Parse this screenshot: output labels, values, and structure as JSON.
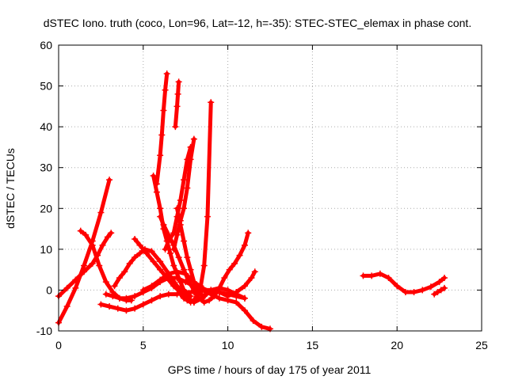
{
  "chart_data": {
    "type": "scatter",
    "title": "dSTEC Iono. truth (coco, Lon=96, Lat=-12, h=-35): STEC-STEC_elemax in phase cont.",
    "xlabel": "GPS time / hours of day 175 of year 2011",
    "ylabel": "dSTEC  / TECUs",
    "xlim": [
      0,
      25
    ],
    "ylim": [
      -10,
      60
    ],
    "x_ticks": [
      0,
      5,
      10,
      15,
      20,
      25
    ],
    "y_ticks": [
      -10,
      0,
      10,
      20,
      30,
      40,
      50,
      60
    ],
    "x_tick_labels": [
      "0",
      "5",
      "10",
      "15",
      "20",
      "25"
    ],
    "y_tick_labels": [
      "-10",
      "0",
      "10",
      "20",
      "30",
      "40",
      "50",
      "60"
    ],
    "grid": true,
    "marker": "plus",
    "color": "#ff0000",
    "series": [
      {
        "x": [
          0.0,
          0.5,
          1.0,
          1.5,
          2.0,
          2.5,
          3.0
        ],
        "y": [
          -8.0,
          -4.0,
          0.5,
          6.0,
          12.0,
          19.0,
          27.0
        ]
      },
      {
        "x": [
          0.0,
          0.5,
          1.0,
          1.5,
          2.0,
          2.3,
          2.6,
          2.9,
          3.1
        ],
        "y": [
          -1.5,
          0.5,
          2.5,
          4.5,
          6.5,
          8.5,
          11.0,
          13.0,
          14.0
        ]
      },
      {
        "x": [
          1.3,
          1.6,
          2.0,
          2.4,
          2.8,
          3.2,
          3.6,
          4.0,
          4.3
        ],
        "y": [
          14.5,
          13.5,
          11.0,
          6.0,
          2.0,
          -0.5,
          -2.0,
          -2.5,
          -2.5
        ]
      },
      {
        "x": [
          2.5,
          3.0,
          3.5,
          4.0,
          4.5,
          5.0,
          5.5,
          6.0,
          6.5,
          7.0,
          7.5,
          8.0,
          8.5,
          9.0,
          9.5,
          10.0,
          10.5,
          11.0
        ],
        "y": [
          -3.5,
          -4.0,
          -4.5,
          -5.0,
          -4.5,
          -3.5,
          -2.5,
          -1.5,
          -1.0,
          -1.0,
          -0.5,
          -0.5,
          0.0,
          0.0,
          -0.5,
          -1.0,
          -1.5,
          -2.0
        ]
      },
      {
        "x": [
          2.8,
          3.2,
          3.6,
          4.0,
          4.5,
          5.0,
          5.5,
          6.0,
          6.5,
          7.0,
          7.5,
          8.0,
          8.5,
          9.0,
          9.5,
          10.0,
          10.5,
          11.0,
          11.5,
          12.0,
          12.5
        ],
        "y": [
          -1.0,
          -1.5,
          -2.0,
          -2.0,
          -1.5,
          -0.5,
          0.5,
          2.0,
          3.0,
          3.0,
          2.0,
          1.0,
          0.0,
          -1.0,
          -2.0,
          -2.5,
          -3.0,
          -5.0,
          -7.5,
          -9.0,
          -9.5
        ]
      },
      {
        "x": [
          3.3,
          3.6,
          3.9,
          4.2,
          4.5,
          4.8,
          5.1,
          5.5,
          6.0,
          6.5,
          7.0,
          7.5,
          8.0,
          8.5,
          9.0,
          9.5,
          10.0,
          10.5,
          11.0
        ],
        "y": [
          1.0,
          3.0,
          4.5,
          6.5,
          8.0,
          9.0,
          10.0,
          9.5,
          7.0,
          4.0,
          1.0,
          -1.5,
          -3.0,
          -2.0,
          0.0,
          0.5,
          0.0,
          -1.0,
          -2.0
        ]
      },
      {
        "x": [
          4.5,
          4.8,
          5.2,
          5.6,
          6.0,
          6.4,
          6.8,
          7.2,
          7.5,
          7.8
        ],
        "y": [
          12.5,
          11.0,
          9.0,
          7.0,
          5.0,
          3.0,
          1.0,
          -0.5,
          -1.0,
          -1.5
        ]
      },
      {
        "x": [
          5.0,
          5.5,
          6.0,
          6.5,
          7.0,
          7.5,
          8.0,
          8.5,
          9.0,
          9.5,
          10.0,
          10.5,
          11.0,
          11.4,
          11.6
        ],
        "y": [
          0.0,
          1.0,
          2.5,
          4.0,
          4.5,
          4.0,
          2.0,
          0.5,
          -0.5,
          -0.5,
          -1.5,
          -0.5,
          1.0,
          3.0,
          4.5
        ]
      },
      {
        "x": [
          5.6,
          5.8,
          6.0,
          6.2,
          6.4,
          6.6,
          6.8,
          7.0,
          7.2,
          7.4,
          7.6,
          7.8,
          8.0
        ],
        "y": [
          28.0,
          24.0,
          20.0,
          15.0,
          12.0,
          9.0,
          6.0,
          4.0,
          2.0,
          0.0,
          -1.5,
          -2.5,
          -3.0
        ]
      },
      {
        "x": [
          5.8,
          6.0,
          6.1,
          6.2,
          6.3,
          6.4
        ],
        "y": [
          26.0,
          33.0,
          38.0,
          44.0,
          49.0,
          53.0
        ]
      },
      {
        "x": [
          6.0,
          6.2,
          6.5,
          6.8,
          7.1,
          7.4,
          7.7,
          8.0,
          8.3,
          8.6,
          8.9,
          9.2,
          9.5,
          9.8,
          10.1,
          10.4,
          10.7,
          11.0,
          11.2
        ],
        "y": [
          18.0,
          16.0,
          13.5,
          11.0,
          8.0,
          5.0,
          2.0,
          0.0,
          -2.0,
          -3.0,
          -2.5,
          -1.5,
          0.5,
          3.0,
          5.0,
          6.5,
          8.5,
          11.0,
          14.0
        ]
      },
      {
        "x": [
          6.3,
          6.5,
          6.8,
          7.0,
          7.2,
          7.4,
          7.6,
          7.8
        ],
        "y": [
          10.0,
          12.0,
          14.0,
          18.0,
          22.0,
          27.0,
          32.0,
          35.0
        ]
      },
      {
        "x": [
          6.9,
          7.0,
          7.05,
          7.1
        ],
        "y": [
          40.0,
          45.0,
          48.0,
          51.0
        ]
      },
      {
        "x": [
          6.8,
          7.0,
          7.2,
          7.4,
          7.6,
          7.8,
          8.0
        ],
        "y": [
          10.0,
          13.5,
          17.0,
          20.0,
          25.0,
          32.0,
          37.0
        ]
      },
      {
        "x": [
          7.0,
          7.2,
          7.4,
          7.6,
          7.8,
          8.0,
          8.2,
          8.4,
          8.6
        ],
        "y": [
          20.0,
          16.0,
          12.0,
          8.0,
          5.0,
          2.0,
          0.0,
          -1.0,
          -1.5
        ]
      },
      {
        "x": [
          7.2,
          7.4,
          7.6,
          7.8,
          8.0,
          8.2,
          8.4,
          8.6,
          8.8,
          9.0
        ],
        "y": [
          -1.0,
          -2.0,
          -2.5,
          -3.0,
          -2.5,
          -1.0,
          1.0,
          6.0,
          18.0,
          46.0
        ]
      },
      {
        "x": [
          18.0,
          18.5,
          19.0,
          19.5,
          20.0,
          20.5,
          21.0,
          21.5,
          22.0,
          22.5,
          22.8
        ],
        "y": [
          3.5,
          3.5,
          4.0,
          3.0,
          1.0,
          -0.5,
          -0.5,
          0.0,
          0.8,
          2.0,
          3.0
        ]
      },
      {
        "x": [
          22.2,
          22.4,
          22.6,
          22.8
        ],
        "y": [
          -1.0,
          -0.5,
          0.0,
          0.5
        ]
      }
    ]
  }
}
